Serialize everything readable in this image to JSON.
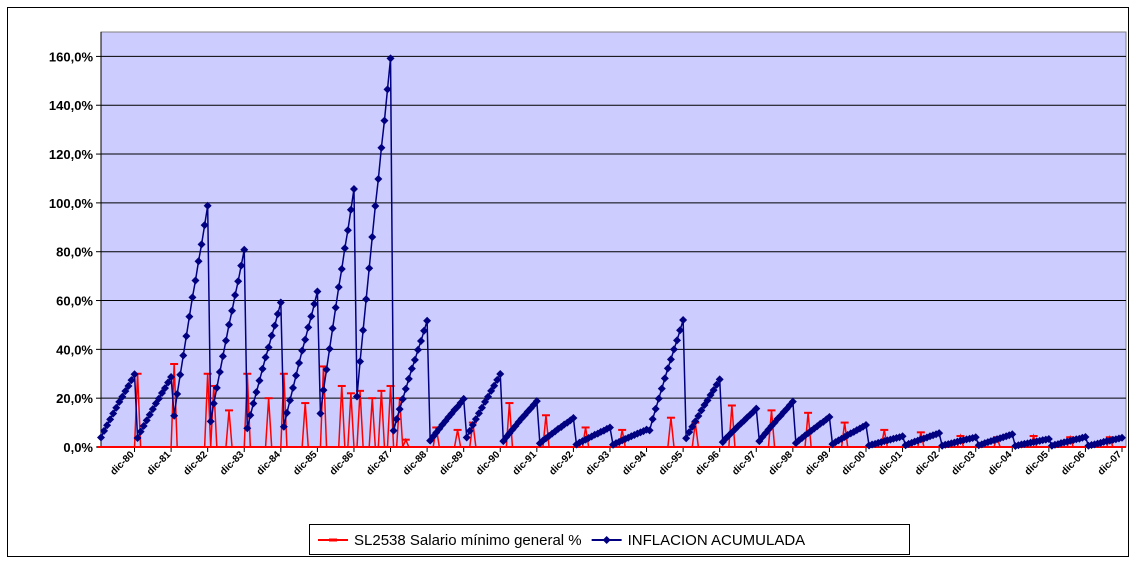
{
  "chart_data": {
    "type": "line",
    "categories": [
      null,
      null,
      null,
      null,
      null,
      null,
      null,
      null,
      null,
      null,
      null,
      "dic-80",
      null,
      null,
      null,
      null,
      null,
      null,
      null,
      null,
      null,
      null,
      null,
      "dic-81",
      null,
      null,
      null,
      null,
      null,
      null,
      null,
      null,
      null,
      null,
      null,
      "dic-82",
      null,
      null,
      null,
      null,
      null,
      null,
      null,
      null,
      null,
      null,
      null,
      "dic-83",
      null,
      null,
      null,
      null,
      null,
      null,
      null,
      null,
      null,
      null,
      null,
      "dic-84",
      null,
      null,
      null,
      null,
      null,
      null,
      null,
      null,
      null,
      null,
      null,
      "dic-85",
      null,
      null,
      null,
      null,
      null,
      null,
      null,
      null,
      null,
      null,
      null,
      "dic-86",
      null,
      null,
      null,
      null,
      null,
      null,
      null,
      null,
      null,
      null,
      null,
      "dic-87",
      null,
      null,
      null,
      null,
      null,
      null,
      null,
      null,
      null,
      null,
      null,
      "dic-88",
      null,
      null,
      null,
      null,
      null,
      null,
      null,
      null,
      null,
      null,
      null,
      "dic-89",
      null,
      null,
      null,
      null,
      null,
      null,
      null,
      null,
      null,
      null,
      null,
      "dic-90",
      null,
      null,
      null,
      null,
      null,
      null,
      null,
      null,
      null,
      null,
      null,
      "dic-91",
      null,
      null,
      null,
      null,
      null,
      null,
      null,
      null,
      null,
      null,
      null,
      "dic-92",
      null,
      null,
      null,
      null,
      null,
      null,
      null,
      null,
      null,
      null,
      null,
      "dic-93",
      null,
      null,
      null,
      null,
      null,
      null,
      null,
      null,
      null,
      null,
      null,
      "dic-94",
      null,
      null,
      null,
      null,
      null,
      null,
      null,
      null,
      null,
      null,
      null,
      "dic-95",
      null,
      null,
      null,
      null,
      null,
      null,
      null,
      null,
      null,
      null,
      null,
      "dic-96",
      null,
      null,
      null,
      null,
      null,
      null,
      null,
      null,
      null,
      null,
      null,
      "dic-97",
      null,
      null,
      null,
      null,
      null,
      null,
      null,
      null,
      null,
      null,
      null,
      "dic-98",
      null,
      null,
      null,
      null,
      null,
      null,
      null,
      null,
      null,
      null,
      null,
      "dic-99",
      null,
      null,
      null,
      null,
      null,
      null,
      null,
      null,
      null,
      null,
      null,
      "dic-00",
      null,
      null,
      null,
      null,
      null,
      null,
      null,
      null,
      null,
      null,
      null,
      "dic-01",
      null,
      null,
      null,
      null,
      null,
      null,
      null,
      null,
      null,
      null,
      null,
      "dic-02",
      null,
      null,
      null,
      null,
      null,
      null,
      null,
      null,
      null,
      null,
      null,
      "dic-03",
      null,
      null,
      null,
      null,
      null,
      null,
      null,
      null,
      null,
      null,
      null,
      "dic-04",
      null,
      null,
      null,
      null,
      null,
      null,
      null,
      null,
      null,
      null,
      null,
      "dic-05",
      null,
      null,
      null,
      null,
      null,
      null,
      null,
      null,
      null,
      null,
      null,
      "dic-06",
      null,
      null,
      null,
      null,
      null,
      null,
      null,
      null,
      null,
      null,
      null,
      "dic-07"
    ],
    "series": [
      {
        "name": "SL2538 Salario mínimo general %",
        "color": "#ff0000",
        "marker": "dash",
        "values": [
          0,
          0,
          0,
          0,
          0,
          0,
          0,
          0,
          0,
          0,
          0,
          0,
          30,
          0,
          0,
          0,
          0,
          0,
          0,
          0,
          0,
          0,
          0,
          0,
          34,
          0,
          0,
          0,
          0,
          0,
          0,
          0,
          0,
          0,
          0,
          30,
          0,
          25,
          0,
          0,
          0,
          0,
          15,
          0,
          0,
          0,
          0,
          0,
          30,
          0,
          0,
          0,
          0,
          0,
          0,
          20,
          0,
          0,
          0,
          0,
          30,
          0,
          0,
          0,
          0,
          0,
          0,
          18,
          0,
          0,
          0,
          0,
          0,
          33,
          0,
          0,
          0,
          0,
          0,
          25,
          0,
          0,
          22,
          0,
          0,
          23,
          0,
          0,
          0,
          20,
          0,
          0,
          23,
          0,
          0,
          25,
          0,
          0,
          20,
          0,
          3,
          0,
          0,
          0,
          0,
          0,
          0,
          0,
          0,
          0,
          8,
          0,
          0,
          0,
          0,
          0,
          0,
          7,
          0,
          0,
          0,
          0,
          10,
          0,
          0,
          0,
          0,
          0,
          0,
          0,
          0,
          0,
          0,
          0,
          18,
          0,
          0,
          0,
          0,
          0,
          0,
          0,
          0,
          0,
          0,
          0,
          13,
          0,
          0,
          0,
          0,
          0,
          0,
          0,
          0,
          0,
          0,
          0,
          0,
          8,
          0,
          0,
          0,
          0,
          0,
          0,
          0,
          0,
          0,
          0,
          0,
          7,
          0,
          0,
          0,
          0,
          0,
          0,
          0,
          0,
          0,
          0,
          0,
          0,
          0,
          0,
          0,
          12,
          0,
          0,
          0,
          0,
          0,
          0,
          0,
          10,
          0,
          0,
          0,
          0,
          0,
          0,
          0,
          0,
          0,
          0,
          0,
          17,
          0,
          0,
          0,
          0,
          0,
          0,
          0,
          0,
          0,
          0,
          0,
          0,
          15,
          0,
          0,
          0,
          0,
          0,
          0,
          0,
          0,
          0,
          0,
          0,
          14,
          0,
          0,
          0,
          0,
          0,
          0,
          0,
          0,
          0,
          0,
          0,
          10,
          0,
          0,
          0,
          0,
          0,
          0,
          0,
          0,
          0,
          0,
          0,
          0,
          7,
          0,
          0,
          0,
          0,
          0,
          0,
          0,
          0,
          0,
          0,
          0,
          6,
          0,
          0,
          0,
          0,
          0,
          0,
          0,
          0,
          0,
          0,
          0,
          0,
          4.5,
          0,
          0,
          0,
          0,
          0,
          0,
          0,
          0,
          0,
          0,
          0,
          4,
          0,
          0,
          0,
          0,
          0,
          0,
          0,
          0,
          0,
          0,
          0,
          4.5,
          0,
          0,
          0,
          0,
          0,
          0,
          0,
          0,
          0,
          0,
          0,
          4,
          0,
          0,
          0,
          0,
          0,
          0,
          0,
          0,
          0,
          0,
          0,
          0,
          4,
          0,
          0,
          0,
          0
        ]
      },
      {
        "name": "INFLACION ACUMULADA",
        "color": "#000080",
        "marker": "diamond",
        "values": [
          3.9,
          6.6,
          8.9,
          11.3,
          13.7,
          16.1,
          18.5,
          20.6,
          22.9,
          25.0,
          27.4,
          29.8,
          3.7,
          6.3,
          8.6,
          10.9,
          13.2,
          15.5,
          17.8,
          19.8,
          22.1,
          24.1,
          26.4,
          28.7,
          12.8,
          21.7,
          29.6,
          37.5,
          45.4,
          53.4,
          61.3,
          68.2,
          76.1,
          83.0,
          90.9,
          98.8,
          10.5,
          17.8,
          24.2,
          30.7,
          37.2,
          43.6,
          50.1,
          55.8,
          62.2,
          67.9,
          74.3,
          80.8,
          7.7,
          13.0,
          17.8,
          22.5,
          27.2,
          32.0,
          36.7,
          40.8,
          45.6,
          49.7,
          54.5,
          59.2,
          8.3,
          14.0,
          19.1,
          24.2,
          29.3,
          34.4,
          39.5,
          44.0,
          49.0,
          53.5,
          58.6,
          63.7,
          13.7,
          23.3,
          31.7,
          40.2,
          48.6,
          57.1,
          65.5,
          72.9,
          81.4,
          88.8,
          97.2,
          105.7,
          20.7,
          35.0,
          47.8,
          60.5,
          73.2,
          86.0,
          98.7,
          109.8,
          122.6,
          133.7,
          146.5,
          159.2,
          6.7,
          11.4,
          15.5,
          19.6,
          23.8,
          27.9,
          32.1,
          35.7,
          39.8,
          43.4,
          47.6,
          51.7,
          2.6,
          4.3,
          5.9,
          7.5,
          9.1,
          10.6,
          12.2,
          13.6,
          15.2,
          16.5,
          18.1,
          19.7,
          3.9,
          6.6,
          9.0,
          11.4,
          13.8,
          16.1,
          18.5,
          20.6,
          23.0,
          25.1,
          27.5,
          29.9,
          2.4,
          4.1,
          5.6,
          7.1,
          8.6,
          10.2,
          11.7,
          13.0,
          14.5,
          15.8,
          17.3,
          18.8,
          1.5,
          2.6,
          3.6,
          4.5,
          5.5,
          6.4,
          7.4,
          8.2,
          9.2,
          10.0,
          10.9,
          11.9,
          1.0,
          1.8,
          2.4,
          3.0,
          3.7,
          4.3,
          5.0,
          5.5,
          6.2,
          6.7,
          7.4,
          8.0,
          0.9,
          1.6,
          2.1,
          2.7,
          3.3,
          3.8,
          4.4,
          4.9,
          5.5,
          6.0,
          6.5,
          7.1,
          6.8,
          11.4,
          15.6,
          19.8,
          23.9,
          28.1,
          32.2,
          35.9,
          40.0,
          43.7,
          47.8,
          52.0,
          3.6,
          6.1,
          8.3,
          10.5,
          12.7,
          15.0,
          17.2,
          19.1,
          21.3,
          23.3,
          25.5,
          27.7,
          2.0,
          3.5,
          4.7,
          6.0,
          7.2,
          8.5,
          9.7,
          10.8,
          12.1,
          13.2,
          14.4,
          15.7,
          2.4,
          4.1,
          5.6,
          7.1,
          8.6,
          10.0,
          11.5,
          12.8,
          14.3,
          15.6,
          17.1,
          18.6,
          1.6,
          2.7,
          3.7,
          4.7,
          5.7,
          6.6,
          7.6,
          8.5,
          9.5,
          10.3,
          11.3,
          12.3,
          1.2,
          2.0,
          2.7,
          3.4,
          4.1,
          4.9,
          5.6,
          6.2,
          6.9,
          7.6,
          8.3,
          9.0,
          0.6,
          1.0,
          1.3,
          1.7,
          2.0,
          2.4,
          2.7,
          3.0,
          3.4,
          3.7,
          4.0,
          4.4,
          0.7,
          1.3,
          1.7,
          2.2,
          2.6,
          3.1,
          3.5,
          3.9,
          4.4,
          4.8,
          5.2,
          5.7,
          0.5,
          0.9,
          1.2,
          1.5,
          1.8,
          2.2,
          2.5,
          2.8,
          3.1,
          3.4,
          3.7,
          4.0,
          0.7,
          1.1,
          1.6,
          2.0,
          2.4,
          2.8,
          3.2,
          3.6,
          4.0,
          4.4,
          4.8,
          5.2,
          0.4,
          0.7,
          1.0,
          1.3,
          1.5,
          1.8,
          2.0,
          2.3,
          2.5,
          2.8,
          3.0,
          3.3,
          0.5,
          0.9,
          1.2,
          1.6,
          1.9,
          2.2,
          2.5,
          2.8,
          3.2,
          3.4,
          3.8,
          4.1,
          0.5,
          0.8,
          1.1,
          1.4,
          1.7,
          2.1,
          2.4,
          2.6,
          2.9,
          3.2,
          3.5,
          3.8
        ]
      }
    ],
    "ylim": [
      0,
      170
    ],
    "yticks": [
      {
        "value": 0,
        "label": "0,0%"
      },
      {
        "value": 20,
        "label": "20,0%"
      },
      {
        "value": 40,
        "label": "40,0%"
      },
      {
        "value": 60,
        "label": "60,0%"
      },
      {
        "value": 80,
        "label": "80,0%"
      },
      {
        "value": 100,
        "label": "100,0%"
      },
      {
        "value": 120,
        "label": "120,0%"
      },
      {
        "value": 140,
        "label": "140,0%"
      },
      {
        "value": 160,
        "label": "160,0%"
      }
    ],
    "grid": true,
    "plot_background": "#ccccff",
    "legend": "bottom"
  }
}
